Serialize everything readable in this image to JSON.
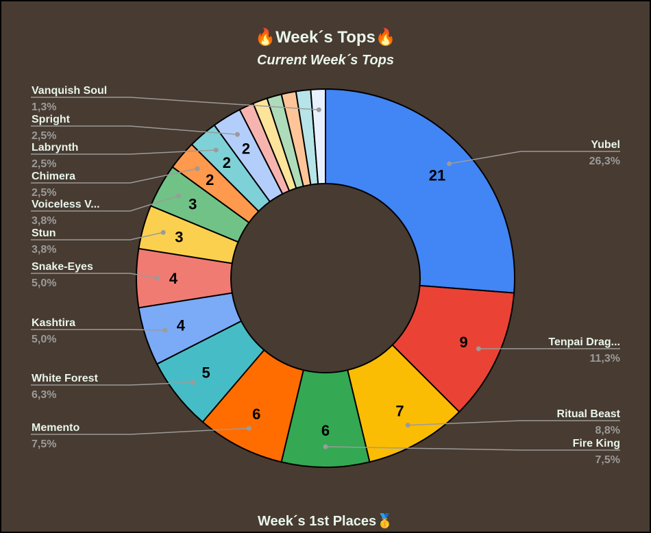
{
  "title": "🔥Week´s Tops🔥",
  "subtitle": "Current Week´s Tops",
  "footer_title": "Week´s 1st Places🥇",
  "chart_data": {
    "type": "pie",
    "donut": true,
    "title": "🔥Week´s Tops🔥",
    "subtitle": "Current Week´s Tops",
    "slices": [
      {
        "label": "Yubel",
        "value": 21,
        "percent": "26,3%",
        "color": "#4285f4"
      },
      {
        "label": "Tenpai Drag...",
        "value": 9,
        "percent": "11,3%",
        "color": "#ea4335"
      },
      {
        "label": "Ritual Beast",
        "value": 7,
        "percent": "8,8%",
        "color": "#fbbc04"
      },
      {
        "label": "Fire King",
        "value": 6,
        "percent": "7,5%",
        "color": "#34a853"
      },
      {
        "label": "Memento",
        "value": 6,
        "percent": "7,5%",
        "color": "#ff6d01"
      },
      {
        "label": "White Forest",
        "value": 5,
        "percent": "6,3%",
        "color": "#46bdc6"
      },
      {
        "label": "Kashtira",
        "value": 4,
        "percent": "5,0%",
        "color": "#7baaf7"
      },
      {
        "label": "Snake-Eyes",
        "value": 4,
        "percent": "5,0%",
        "color": "#f07b72"
      },
      {
        "label": "Stun",
        "value": 3,
        "percent": "3,8%",
        "color": "#fcd04f"
      },
      {
        "label": "Voiceless V...",
        "value": 3,
        "percent": "3,8%",
        "color": "#71c287"
      },
      {
        "label": "Chimera",
        "value": 2,
        "percent": "2,5%",
        "color": "#ff994d"
      },
      {
        "label": "Labrynth",
        "value": 2,
        "percent": "2,5%",
        "color": "#7ed1d7"
      },
      {
        "label": "Spright",
        "value": 2,
        "percent": "2,5%",
        "color": "#b3cefb"
      },
      {
        "label": "",
        "value": 1,
        "percent": "",
        "color": "#f7b4ae"
      },
      {
        "label": "",
        "value": 1,
        "percent": "",
        "color": "#fde49b"
      },
      {
        "label": "",
        "value": 1,
        "percent": "",
        "color": "#aedcba"
      },
      {
        "label": "",
        "value": 1,
        "percent": "",
        "color": "#ffc599"
      },
      {
        "label": "",
        "value": 1,
        "percent": "",
        "color": "#b6e4e8"
      },
      {
        "label": "Vanquish Soul",
        "value": 1,
        "percent": "1,3%",
        "color": "#e8f0fe"
      }
    ],
    "legend": "callout labels",
    "background": "#483b31"
  }
}
